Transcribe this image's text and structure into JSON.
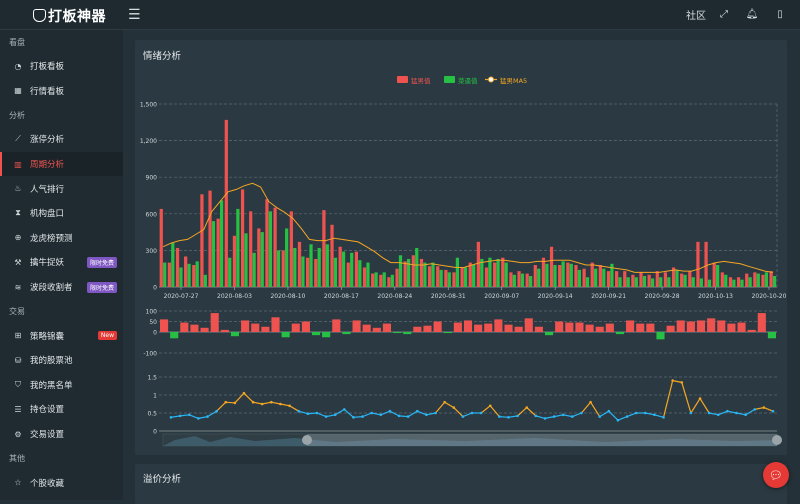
{
  "app": {
    "title": "打板神器"
  },
  "topbar": {
    "community": "社区"
  },
  "sidebar": {
    "sections": [
      {
        "title": "看盘",
        "items": [
          {
            "label": "打板看板",
            "icon": "gauge-icon",
            "glyph": "◔"
          },
          {
            "label": "行情看板",
            "icon": "grid-icon",
            "glyph": "▦"
          }
        ]
      },
      {
        "title": "分析",
        "items": [
          {
            "label": "涨停分析",
            "icon": "trend-icon",
            "glyph": "⟋"
          },
          {
            "label": "周期分析",
            "icon": "bar-chart-icon",
            "glyph": "▥",
            "active": true
          },
          {
            "label": "人气排行",
            "icon": "fire-icon",
            "glyph": "♨"
          },
          {
            "label": "机构盘口",
            "icon": "hourglass-icon",
            "glyph": "⧗"
          },
          {
            "label": "龙虎榜预测",
            "icon": "target-icon",
            "glyph": "⊕"
          },
          {
            "label": "擒牛捉妖",
            "icon": "magic-wand-icon",
            "glyph": "⚒",
            "badge": "限时免费",
            "badge_color": "purple"
          },
          {
            "label": "波段收割者",
            "icon": "wave-icon",
            "glyph": "≋",
            "badge": "限时免费",
            "badge_color": "purple"
          }
        ]
      },
      {
        "title": "交易",
        "items": [
          {
            "label": "策略锦囊",
            "icon": "gift-icon",
            "glyph": "⊞",
            "badge": "New",
            "badge_color": "red"
          },
          {
            "label": "我的股票池",
            "icon": "database-icon",
            "glyph": "⛁"
          },
          {
            "label": "我的黑名单",
            "icon": "shield-icon",
            "glyph": "⛉"
          },
          {
            "label": "持仓设置",
            "icon": "list-icon",
            "glyph": "☰"
          },
          {
            "label": "交易设置",
            "icon": "gear-icon",
            "glyph": "⚙"
          }
        ]
      },
      {
        "title": "其他",
        "items": [
          {
            "label": "个股收藏",
            "icon": "star-icon",
            "glyph": "☆"
          }
        ]
      }
    ]
  },
  "panel": {
    "title": "情绪分析"
  },
  "panel2": {
    "title": "溢价分析"
  },
  "colors": {
    "red": "#ef5350",
    "green": "#26c144",
    "orange": "#f5a623",
    "blue": "#29b6f6"
  },
  "chart_data": [
    {
      "type": "bar",
      "legend": [
        "猛男值",
        "菜逼值",
        "猛男MA5"
      ],
      "legend_position": "top-center",
      "ylim": [
        0,
        1500
      ],
      "yticks": [
        "0",
        "300",
        "600",
        "900",
        "1,200",
        "1,500"
      ],
      "xtick_labels": [
        "2020-07-27",
        "2020-08-03",
        "2020-08-10",
        "2020-08-17",
        "2020-08-24",
        "2020-08-31",
        "2020-09-07",
        "2020-09-14",
        "2020-09-21",
        "2020-09-28",
        "2020-10-13",
        "2020-10-20"
      ],
      "grid": true,
      "series": [
        {
          "name": "猛男值",
          "values": [
            640,
            200,
            320,
            250,
            180,
            760,
            790,
            560,
            1370,
            420,
            800,
            620,
            480,
            720,
            650,
            300,
            620,
            370,
            240,
            230,
            630,
            510,
            330,
            200,
            290,
            160,
            110,
            100,
            80,
            150,
            210,
            260,
            230,
            170,
            170,
            140,
            120,
            160,
            200,
            370,
            160,
            200,
            240,
            120,
            130,
            110,
            180,
            240,
            330,
            180,
            200,
            180,
            150,
            200,
            180,
            130,
            130,
            130,
            100,
            120,
            100,
            130,
            120,
            160,
            110,
            130,
            370,
            370,
            200,
            120,
            80,
            80,
            110,
            120,
            100,
            130
          ]
        },
        {
          "name": "菜逼值",
          "values": [
            200,
            360,
            160,
            190,
            210,
            100,
            540,
            710,
            240,
            640,
            440,
            280,
            450,
            620,
            300,
            480,
            320,
            250,
            350,
            320,
            350,
            240,
            290,
            280,
            220,
            200,
            120,
            120,
            100,
            260,
            230,
            320,
            200,
            200,
            140,
            120,
            240,
            160,
            180,
            230,
            240,
            230,
            200,
            100,
            110,
            90,
            150,
            190,
            180,
            210,
            190,
            140,
            80,
            150,
            150,
            190,
            80,
            80,
            80,
            90,
            70,
            80,
            80,
            140,
            100,
            80,
            70,
            60,
            180,
            100,
            60,
            60,
            80,
            110,
            120,
            90
          ]
        },
        {
          "name": "猛男MA5",
          "values": [
            330,
            360,
            380,
            390,
            430,
            470,
            620,
            700,
            780,
            800,
            830,
            850,
            820,
            700,
            650,
            610,
            560,
            480,
            390,
            380,
            380,
            400,
            390,
            380,
            370,
            330,
            290,
            240,
            200,
            200,
            190,
            180,
            180,
            190,
            180,
            170,
            160,
            160,
            180,
            200,
            210,
            220,
            220,
            210,
            200,
            200,
            210,
            210,
            220,
            220,
            220,
            200,
            180,
            180,
            170,
            160,
            150,
            140,
            120,
            120,
            120,
            120,
            130,
            140,
            130,
            130,
            150,
            180,
            200,
            210,
            200,
            190,
            170,
            150,
            130,
            120
          ]
        }
      ]
    },
    {
      "type": "bar",
      "ylim": [
        -100,
        100
      ],
      "yticks": [
        "-100",
        "0",
        "50",
        "100"
      ],
      "series": [
        {
          "name": "",
          "values": [
            60,
            -30,
            45,
            35,
            20,
            90,
            10,
            -20,
            55,
            40,
            25,
            70,
            -25,
            40,
            50,
            -15,
            -25,
            60,
            -10,
            55,
            35,
            20,
            40,
            -5,
            -10,
            25,
            30,
            50,
            -5,
            45,
            55,
            35,
            40,
            60,
            35,
            25,
            65,
            25,
            -15,
            50,
            45,
            45,
            35,
            25,
            40,
            -10,
            55,
            40,
            40,
            -35,
            30,
            55,
            50,
            55,
            65,
            55,
            40,
            45,
            10,
            90,
            -30
          ]
        }
      ]
    },
    {
      "type": "line",
      "ylim": [
        0,
        1.5
      ],
      "yticks": [
        "0",
        "0.5",
        "1",
        "1.5"
      ],
      "series": [
        {
          "name": "",
          "values": [
            0.38,
            0.42,
            0.45,
            0.35,
            0.4,
            0.55,
            0.8,
            0.78,
            1.05,
            0.8,
            0.75,
            0.8,
            0.75,
            0.7,
            0.55,
            0.48,
            0.5,
            0.4,
            0.45,
            0.6,
            0.38,
            0.4,
            0.5,
            0.45,
            0.55,
            0.42,
            0.4,
            0.55,
            0.45,
            0.5,
            0.8,
            0.65,
            0.4,
            0.5,
            0.5,
            0.7,
            0.4,
            0.38,
            0.42,
            0.65,
            0.42,
            0.35,
            0.4,
            0.45,
            0.4,
            0.5,
            0.8,
            0.4,
            0.55,
            0.3,
            0.4,
            0.5,
            0.5,
            0.45,
            0.38,
            1.4,
            1.35,
            0.5,
            0.9,
            0.5,
            0.45,
            0.55,
            0.5,
            0.45,
            0.6,
            0.65,
            0.55
          ]
        }
      ]
    }
  ]
}
